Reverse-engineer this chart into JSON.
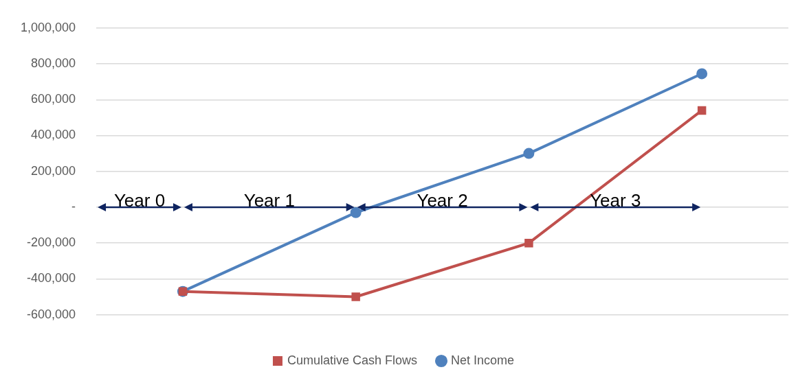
{
  "chart_data": {
    "type": "line",
    "categories": [
      null,
      null,
      null,
      null
    ],
    "series": [
      {
        "name": "Net Income",
        "color": "#4f81bd",
        "marker": "circle",
        "values": [
          -470000,
          -30000,
          300000,
          745000
        ]
      },
      {
        "name": "Cumulative Cash Flows",
        "color": "#c0504d",
        "marker": "square",
        "values": [
          -470000,
          -500000,
          -200000,
          540000
        ]
      }
    ],
    "ylim": [
      -600000,
      1000000
    ],
    "yticks": [
      {
        "value": -600000,
        "label": "-600,000"
      },
      {
        "value": -400000,
        "label": "-400,000"
      },
      {
        "value": -200000,
        "label": "-200,000"
      },
      {
        "value": 0,
        "label": "-"
      },
      {
        "value": 200000,
        "label": "200,000"
      },
      {
        "value": 400000,
        "label": "400,000"
      },
      {
        "value": 600000,
        "label": "600,000"
      },
      {
        "value": 800000,
        "label": "800,000"
      },
      {
        "value": 1000000,
        "label": "1,000,000"
      }
    ],
    "grid": "y",
    "legend": "bottom",
    "line_style": "solid",
    "annotations": [
      "Year 0",
      "Year 1",
      "Year 2",
      "Year 3"
    ]
  }
}
